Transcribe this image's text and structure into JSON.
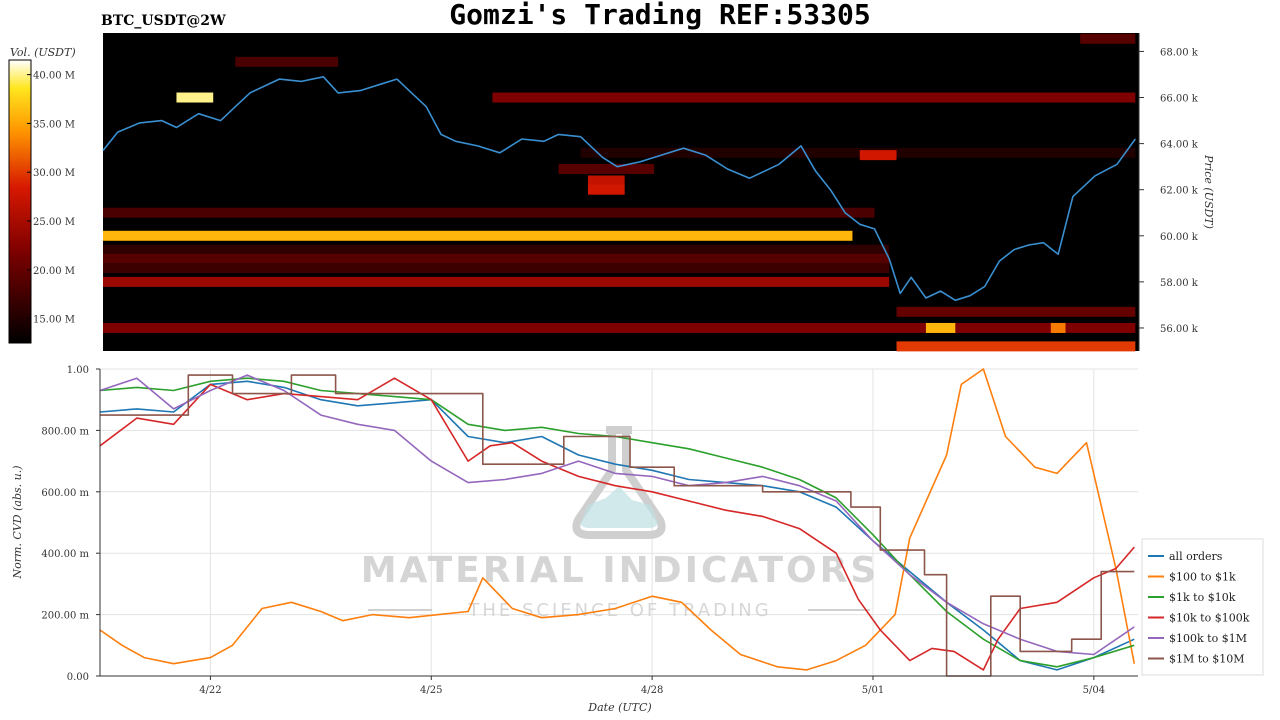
{
  "ticker": "BTC_USDT@2W",
  "title": "Gomzi's Trading REF:53305",
  "watermark": {
    "name": "MATERIAL INDICATORS",
    "tagline": "THE SCIENCE OF TRADING"
  },
  "colors": {
    "price_line": "#3a8fd0",
    "all_orders": "#1f77b4",
    "s100_1k": "#ff7f0e",
    "s1k_10k": "#2ca02c",
    "s10k_100k": "#d62728",
    "s100k_1m": "#9467bd",
    "s1m_10m": "#8c564b"
  },
  "chart_data": [
    {
      "type": "heatmap",
      "title": "",
      "colorbar": {
        "label": "Vol. (USDT)",
        "ticks": [
          "15.00 M",
          "20.00 M",
          "25.00 M",
          "30.00 M",
          "35.00 M",
          "40.00 M"
        ],
        "tick_values": [
          15,
          20,
          25,
          30,
          35,
          40
        ],
        "range": [
          12.5,
          41.5
        ]
      },
      "ylabel": "Price (USDT)",
      "yticks": [
        "56.00 k",
        "58.00 k",
        "60.00 k",
        "62.00 k",
        "64.00 k",
        "66.00 k",
        "68.00 k"
      ],
      "ytick_values": [
        56,
        58,
        60,
        62,
        64,
        66,
        68
      ],
      "ylim": [
        55.0,
        68.8
      ],
      "xlim": [
        0,
        14.1
      ],
      "price_series": {
        "name": "",
        "x": [
          0,
          0.2,
          0.5,
          0.8,
          1.0,
          1.3,
          1.6,
          1.8,
          2.0,
          2.2,
          2.4,
          2.7,
          3.0,
          3.2,
          3.5,
          3.8,
          4.0,
          4.2,
          4.4,
          4.6,
          4.8,
          5.1,
          5.4,
          5.7,
          6.0,
          6.2,
          6.5,
          6.8,
          7.0,
          7.3,
          7.6,
          7.9,
          8.2,
          8.5,
          8.8,
          9.0,
          9.2,
          9.5,
          9.7,
          9.9,
          10.1,
          10.3,
          10.5,
          10.7,
          10.85,
          11.0,
          11.2,
          11.4,
          11.6,
          11.8,
          12.0,
          12.2,
          12.4,
          12.6,
          12.8,
          13.0,
          13.2,
          13.5,
          13.8,
          14.05
        ],
        "y": [
          63.7,
          64.5,
          64.9,
          65.0,
          64.7,
          65.3,
          65.0,
          65.6,
          66.2,
          66.5,
          66.8,
          66.7,
          66.9,
          66.2,
          66.3,
          66.6,
          66.8,
          66.2,
          65.6,
          64.4,
          64.1,
          63.9,
          63.6,
          64.2,
          64.1,
          64.4,
          64.3,
          63.4,
          63.0,
          63.2,
          63.5,
          63.8,
          63.5,
          62.9,
          62.5,
          62.8,
          63.1,
          63.9,
          62.8,
          62.0,
          61.0,
          60.5,
          60.3,
          59.0,
          57.5,
          58.2,
          57.3,
          57.6,
          57.2,
          57.4,
          57.8,
          58.9,
          59.4,
          59.6,
          59.7,
          59.2,
          61.7,
          62.6,
          63.1,
          64.2
        ]
      },
      "rows": [
        {
          "price": 68.55,
          "from": 13.3,
          "to": 14.05,
          "vol": 19
        },
        {
          "price": 67.55,
          "from": 1.8,
          "to": 3.2,
          "vol": 18
        },
        {
          "price": 66.0,
          "from": 1.0,
          "to": 1.5,
          "vol": 40
        },
        {
          "price": 66.0,
          "from": 5.3,
          "to": 14.05,
          "vol": 22
        },
        {
          "price": 63.6,
          "from": 6.5,
          "to": 14.05,
          "vol": 15
        },
        {
          "price": 63.5,
          "from": 10.3,
          "to": 10.8,
          "vol": 28
        },
        {
          "price": 62.9,
          "from": 6.2,
          "to": 7.5,
          "vol": 19
        },
        {
          "price": 62.4,
          "from": 6.6,
          "to": 7.1,
          "vol": 27
        },
        {
          "price": 62.0,
          "from": 6.6,
          "to": 7.1,
          "vol": 28
        },
        {
          "price": 61.0,
          "from": 0,
          "to": 10.5,
          "vol": 18
        },
        {
          "price": 60.0,
          "from": 0,
          "to": 10.2,
          "vol": 36
        },
        {
          "price": 59.4,
          "from": 0,
          "to": 10.7,
          "vol": 16
        },
        {
          "price": 59.0,
          "from": 0,
          "to": 10.7,
          "vol": 19
        },
        {
          "price": 58.6,
          "from": 0,
          "to": 10.7,
          "vol": 17
        },
        {
          "price": 58.0,
          "from": 0,
          "to": 10.7,
          "vol": 24
        },
        {
          "price": 56.7,
          "from": 10.8,
          "to": 14.05,
          "vol": 20
        },
        {
          "price": 56.0,
          "from": 0,
          "to": 14.05,
          "vol": 22
        },
        {
          "price": 56.0,
          "from": 11.2,
          "to": 11.6,
          "vol": 36
        },
        {
          "price": 56.0,
          "from": 12.9,
          "to": 13.1,
          "vol": 33
        },
        {
          "price": 55.2,
          "from": 10.8,
          "to": 14.05,
          "vol": 30
        }
      ]
    },
    {
      "type": "line",
      "title": "",
      "xlabel": "Date (UTC)",
      "ylabel": "Norm. CVD (abs. u.)",
      "xticks": [
        "4/22",
        "4/25",
        "4/28",
        "5/01",
        "5/04"
      ],
      "xtick_values": [
        1.5,
        4.5,
        7.5,
        10.5,
        13.5
      ],
      "yticks": [
        "0.00",
        "200.00 m",
        "400.00 m",
        "600.00 m",
        "800.00 m",
        "1.00"
      ],
      "ytick_values": [
        0,
        0.2,
        0.4,
        0.6,
        0.8,
        1.0
      ],
      "ylim": [
        0,
        1.0
      ],
      "xlim": [
        0,
        14.1
      ],
      "grid": true,
      "legend_position": "right",
      "series": [
        {
          "name": "all orders",
          "color_key": "all_orders",
          "x": [
            0,
            0.5,
            1.0,
            1.5,
            2.0,
            2.5,
            3.0,
            3.5,
            4.0,
            4.5,
            5.0,
            5.5,
            6.0,
            6.5,
            7.0,
            7.5,
            8.0,
            8.5,
            9.0,
            9.5,
            10.0,
            10.5,
            11.0,
            11.5,
            12.0,
            12.5,
            13.0,
            13.5,
            14.05
          ],
          "y": [
            0.86,
            0.87,
            0.86,
            0.95,
            0.96,
            0.94,
            0.9,
            0.88,
            0.89,
            0.9,
            0.78,
            0.76,
            0.78,
            0.72,
            0.69,
            0.67,
            0.64,
            0.63,
            0.62,
            0.6,
            0.55,
            0.44,
            0.34,
            0.24,
            0.15,
            0.05,
            0.02,
            0.06,
            0.12
          ]
        },
        {
          "name": "$100 to $1k",
          "color_key": "s100_1k",
          "x": [
            0,
            0.3,
            0.6,
            1.0,
            1.5,
            1.8,
            2.2,
            2.6,
            3.0,
            3.3,
            3.7,
            4.2,
            4.6,
            5.0,
            5.2,
            5.6,
            6.0,
            6.5,
            7.0,
            7.5,
            7.9,
            8.3,
            8.7,
            9.2,
            9.6,
            10.0,
            10.4,
            10.8,
            11.0,
            11.5,
            11.7,
            12.0,
            12.3,
            12.7,
            13.0,
            13.4,
            13.8,
            14.05
          ],
          "y": [
            0.15,
            0.1,
            0.06,
            0.04,
            0.06,
            0.1,
            0.22,
            0.24,
            0.21,
            0.18,
            0.2,
            0.19,
            0.2,
            0.21,
            0.32,
            0.22,
            0.19,
            0.2,
            0.22,
            0.26,
            0.24,
            0.15,
            0.07,
            0.03,
            0.02,
            0.05,
            0.1,
            0.2,
            0.45,
            0.72,
            0.95,
            1.0,
            0.78,
            0.68,
            0.66,
            0.76,
            0.35,
            0.04
          ]
        },
        {
          "name": "$1k to $10k",
          "color_key": "s1k_10k",
          "x": [
            0,
            0.5,
            1.0,
            1.5,
            2.0,
            2.5,
            3.0,
            3.5,
            4.0,
            4.5,
            5.0,
            5.5,
            6.0,
            6.5,
            7.0,
            7.5,
            8.0,
            8.5,
            9.0,
            9.5,
            10.0,
            10.5,
            11.0,
            11.5,
            12.0,
            12.5,
            13.0,
            13.5,
            14.05
          ],
          "y": [
            0.93,
            0.94,
            0.93,
            0.96,
            0.97,
            0.96,
            0.93,
            0.92,
            0.91,
            0.9,
            0.82,
            0.8,
            0.81,
            0.79,
            0.78,
            0.76,
            0.74,
            0.71,
            0.68,
            0.64,
            0.58,
            0.46,
            0.33,
            0.21,
            0.12,
            0.05,
            0.03,
            0.06,
            0.1
          ]
        },
        {
          "name": "$10k to $100k",
          "color_key": "s10k_100k",
          "x": [
            0,
            0.5,
            1.0,
            1.5,
            2.0,
            2.5,
            3.0,
            3.5,
            4.0,
            4.5,
            5.0,
            5.3,
            5.6,
            6.0,
            6.5,
            7.0,
            7.5,
            8.0,
            8.5,
            9.0,
            9.5,
            10.0,
            10.3,
            10.6,
            11.0,
            11.3,
            11.6,
            12.0,
            12.2,
            12.5,
            13.0,
            13.5,
            13.8,
            14.05
          ],
          "y": [
            0.75,
            0.84,
            0.82,
            0.95,
            0.9,
            0.92,
            0.91,
            0.9,
            0.97,
            0.9,
            0.7,
            0.75,
            0.76,
            0.7,
            0.65,
            0.62,
            0.6,
            0.57,
            0.54,
            0.52,
            0.48,
            0.4,
            0.25,
            0.15,
            0.05,
            0.09,
            0.08,
            0.02,
            0.12,
            0.22,
            0.24,
            0.32,
            0.35,
            0.42
          ]
        },
        {
          "name": "$100k to $1M",
          "color_key": "s100k_1m",
          "x": [
            0,
            0.5,
            1.0,
            1.5,
            2.0,
            2.5,
            3.0,
            3.5,
            4.0,
            4.5,
            5.0,
            5.5,
            6.0,
            6.5,
            7.0,
            7.5,
            8.0,
            8.5,
            9.0,
            9.5,
            10.0,
            10.5,
            11.0,
            11.5,
            12.0,
            12.5,
            13.0,
            13.5,
            14.05
          ],
          "y": [
            0.93,
            0.97,
            0.87,
            0.93,
            0.98,
            0.93,
            0.85,
            0.82,
            0.8,
            0.7,
            0.63,
            0.64,
            0.66,
            0.7,
            0.66,
            0.65,
            0.62,
            0.63,
            0.65,
            0.62,
            0.57,
            0.44,
            0.33,
            0.24,
            0.17,
            0.12,
            0.08,
            0.07,
            0.16
          ]
        },
        {
          "name": "$1M to $10M",
          "color_key": "s1m_10m",
          "x": [
            0,
            1.2,
            1.2,
            1.8,
            1.8,
            2.6,
            2.6,
            3.2,
            3.2,
            5.2,
            5.2,
            6.3,
            6.3,
            7.2,
            7.2,
            7.8,
            7.8,
            9.0,
            9.0,
            10.2,
            10.2,
            10.6,
            10.6,
            11.2,
            11.2,
            11.5,
            11.5,
            12.1,
            12.1,
            12.5,
            12.5,
            13.2,
            13.2,
            13.6,
            13.6,
            14.05
          ],
          "y": [
            0.85,
            0.85,
            0.98,
            0.98,
            0.92,
            0.92,
            0.98,
            0.98,
            0.92,
            0.92,
            0.69,
            0.69,
            0.78,
            0.78,
            0.68,
            0.68,
            0.62,
            0.62,
            0.6,
            0.6,
            0.55,
            0.55,
            0.41,
            0.41,
            0.33,
            0.33,
            0.0,
            0.0,
            0.26,
            0.26,
            0.08,
            0.08,
            0.12,
            0.12,
            0.34,
            0.34
          ]
        }
      ]
    }
  ]
}
